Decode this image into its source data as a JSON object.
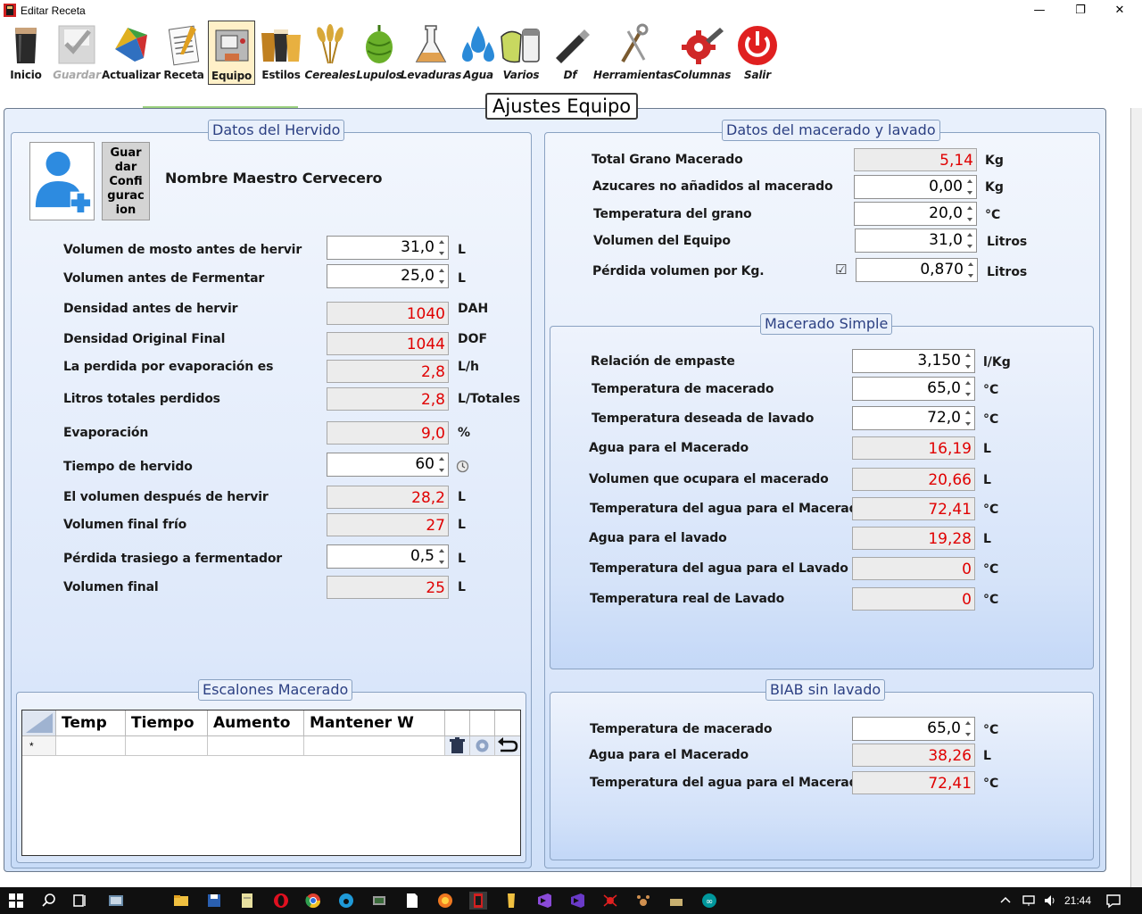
{
  "window": {
    "title": "Editar Receta",
    "minimize": "—",
    "restore": "❐",
    "close": "✕"
  },
  "toolbar": {
    "items": [
      {
        "label": "Inicio"
      },
      {
        "label": "Guardar"
      },
      {
        "label": "Actualizar"
      },
      {
        "label": "Receta"
      },
      {
        "label": "Equipo"
      },
      {
        "label": "Estilos"
      },
      {
        "label": "Cereales"
      },
      {
        "label": "Lupulos"
      },
      {
        "label": "Levaduras"
      },
      {
        "label": "Agua"
      },
      {
        "label": "Varios"
      },
      {
        "label": "Df"
      },
      {
        "label": "Herramientas"
      },
      {
        "label": "Columnas"
      },
      {
        "label": "Salir"
      }
    ]
  },
  "main": {
    "title": "Ajustes Equipo"
  },
  "hervido": {
    "title": "Datos del Hervido",
    "save_config_label": "Guar dar Confi gurac ion",
    "brewer_name": "Nombre Maestro Cervecero",
    "rows": [
      {
        "label": "Volumen de mosto antes de hervir",
        "value": "31,0",
        "unit": "L"
      },
      {
        "label": "Volumen antes de Fermentar",
        "value": "25,0",
        "unit": "L"
      },
      {
        "label": "Densidad antes de hervir",
        "value": "1040",
        "unit": "DAH"
      },
      {
        "label": "Densidad Original Final",
        "value": "1044",
        "unit": "DOF"
      },
      {
        "label": "La perdida por evaporación es",
        "value": "2,8",
        "unit": "L/h"
      },
      {
        "label": "Litros totales perdidos",
        "value": "2,8",
        "unit": "L/Totales"
      },
      {
        "label": "Evaporación",
        "value": "9,0",
        "unit": "%"
      },
      {
        "label": "Tiempo de hervido",
        "value": "60",
        "unit": ""
      },
      {
        "label": "El volumen después de hervir",
        "value": "28,2",
        "unit": "L"
      },
      {
        "label": "Volumen final frío",
        "value": "27",
        "unit": "L"
      },
      {
        "label": "Pérdida trasiego a fermentador",
        "value": "0,5",
        "unit": "L"
      },
      {
        "label": "Volumen final",
        "value": "25",
        "unit": "L"
      }
    ]
  },
  "escalones": {
    "title": "Escalones Macerado",
    "columns": [
      "Temp",
      "Tiempo",
      "Aumento W",
      "Mantener W"
    ],
    "new_row_marker": "*"
  },
  "macerado": {
    "title": "Datos del macerado y lavado",
    "rows": [
      {
        "label": "Total Grano Macerado",
        "value": "5,14",
        "unit": "Kg"
      },
      {
        "label": "Azucares no añadidos al macerado",
        "value": "0,00",
        "unit": "Kg"
      },
      {
        "label": "Temperatura del grano",
        "value": "20,0",
        "unit": "°C"
      },
      {
        "label": "Volumen del Equipo",
        "value": "31,0",
        "unit": "Litros"
      },
      {
        "label": "Pérdida volumen por Kg.",
        "value": "0,870",
        "unit": "Litros"
      }
    ],
    "checkbox_mark": "☑"
  },
  "simple": {
    "title": "Macerado Simple",
    "rows": [
      {
        "label": "Relación de empaste",
        "value": "3,150",
        "unit": "l/Kg"
      },
      {
        "label": "Temperatura de macerado",
        "value": "65,0",
        "unit": "°C"
      },
      {
        "label": "Temperatura deseada de lavado",
        "value": "72,0",
        "unit": "°C"
      },
      {
        "label": "Agua para el Macerado",
        "value": "16,19",
        "unit": "L"
      },
      {
        "label": "Volumen que ocupara el macerado",
        "value": "20,66",
        "unit": "L"
      },
      {
        "label": "Temperatura del agua para el Macerado",
        "value": "72,41",
        "unit": "°C"
      },
      {
        "label": "Agua para el lavado",
        "value": "19,28",
        "unit": "L"
      },
      {
        "label": "Temperatura del agua para el Lavado",
        "value": "0",
        "unit": "°C"
      },
      {
        "label": "Temperatura real de Lavado",
        "value": "0",
        "unit": "°C"
      }
    ]
  },
  "biab": {
    "title": "BIAB sin lavado",
    "rows": [
      {
        "label": "Temperatura de macerado",
        "value": "65,0",
        "unit": "°C"
      },
      {
        "label": "Agua para el Macerado",
        "value": "38,26",
        "unit": "L"
      },
      {
        "label": "Temperatura del agua para el Macerado",
        "value": "72,41",
        "unit": "°C"
      }
    ]
  },
  "taskbar": {
    "time": "21:44"
  },
  "colors": {
    "accent": "#2b3f82",
    "calc_value": "#e00000",
    "selected_tab": "#fff0c8"
  }
}
